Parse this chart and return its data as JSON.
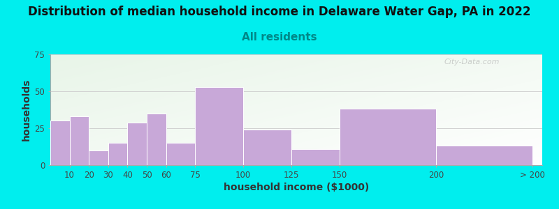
{
  "title": "Distribution of median household income in Delaware Water Gap, PA in 2022",
  "subtitle": "All residents",
  "xlabel": "household income ($1000)",
  "ylabel": "households",
  "title_fontsize": 12,
  "subtitle_fontsize": 11,
  "label_fontsize": 10,
  "tick_fontsize": 8.5,
  "bar_color": "#C8A8D8",
  "bar_edgecolor": "#FFFFFF",
  "background_outer": "#00EEEE",
  "ylim": [
    0,
    75
  ],
  "yticks": [
    0,
    25,
    50,
    75
  ],
  "bar_heights": [
    30,
    33,
    10,
    15,
    29,
    35,
    15,
    53,
    24,
    11,
    38,
    13
  ],
  "tick_vals": [
    10,
    20,
    30,
    40,
    50,
    60,
    75,
    100,
    125,
    150,
    200,
    250
  ],
  "left_edges": [
    0,
    10,
    20,
    30,
    40,
    50,
    60,
    75,
    100,
    125,
    150,
    200
  ],
  "tick_labels": [
    "10",
    "20",
    "30",
    "40",
    "50",
    "60",
    "75",
    "100",
    "125",
    "150",
    "200",
    "> 200"
  ],
  "xlim_max": 255,
  "watermark": "City-Data.com"
}
